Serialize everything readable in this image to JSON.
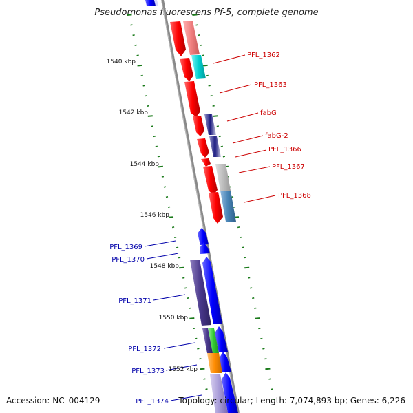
{
  "title": "Pseudomonas fluorescens Pf-5, complete genome",
  "footer": {
    "accession": "Accession: NC_004129",
    "summary": "Topology: circular; Length: 7,074,893 bp; Genes: 6,226"
  },
  "kbp_labels": [
    "1540 kbp",
    "1542 kbp",
    "1544 kbp",
    "1546 kbp",
    "1548 kbp",
    "1550 kbp",
    "1552 kbp"
  ],
  "gene_labels_right": [
    "PFL_1362",
    "PFL_1363",
    "fabG",
    "fabG-2",
    "PFL_1366",
    "PFL_1367",
    "PFL_1368"
  ],
  "gene_labels_left": [
    "PFL_1369",
    "PFL_1370",
    "PFL_1371",
    "PFL_1372",
    "PFL_1373",
    "PFL_1374"
  ],
  "colors": {
    "forward_strand_gene": "#ff0000",
    "reverse_strand_gene": "#0000ff",
    "backbone": "#808080",
    "ticks": "#1a7a1a",
    "red_label": "#cc0000",
    "blue_label": "#0000aa"
  }
}
